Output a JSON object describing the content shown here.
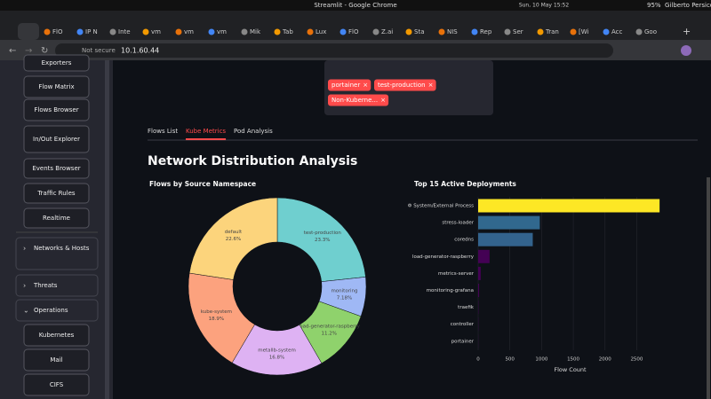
{
  "window": {
    "title": "Streamlit - Google Chrome",
    "clock": "Sun, 10 May 15:52",
    "battery": "95%",
    "user": "Gilberto Persico"
  },
  "browser": {
    "tabs": [
      "FlO",
      "IP N",
      "Inte",
      "vm",
      "vm",
      "vm",
      "Mik",
      "Tab",
      "Lux",
      "FlO",
      "Z.ai",
      "Sta",
      "NIS",
      "Rep",
      "Ser",
      "Tran",
      "[Wi",
      "Acc",
      "Goo"
    ],
    "security": "Not secure",
    "url": "10.1.60.44"
  },
  "sidebar": {
    "buttons": [
      "Exporters",
      "Flow Matrix",
      "Flows Browser",
      "In/Out Explorer",
      "Events Browser",
      "Traffic Rules",
      "Realtime"
    ],
    "expanders": [
      "Networks & Hosts",
      "Threats",
      "Operations"
    ],
    "sub_buttons": [
      "Kubernetes",
      "Mail",
      "CIFS"
    ]
  },
  "filter": {
    "tags": [
      "portainer",
      "test-production",
      "Non-Kuberne..."
    ]
  },
  "tabs": {
    "items": [
      "Flows List",
      "Kube Metrics",
      "Pod Analysis"
    ],
    "active": 1
  },
  "heading": "Network Distribution Analysis",
  "chart_data": [
    {
      "type": "pie",
      "title": "Flows by Source Namespace",
      "labels": [
        "test-production",
        "monitoring",
        "load-generator-raspberry",
        "metallb-system",
        "kube-system",
        "default"
      ],
      "values": [
        23.3,
        7.18,
        11.2,
        16.8,
        18.9,
        22.6
      ],
      "value_labels": [
        "23.3%",
        "7.18%",
        "11.2%",
        "16.8%",
        "18.9%",
        "22.6%"
      ],
      "colors": [
        "#6fcfcf",
        "#9fb8f5",
        "#8fd26c",
        "#deb2f3",
        "#fca27e",
        "#fcd47c"
      ]
    },
    {
      "type": "bar",
      "title": "Top 15 Active Deployments",
      "orientation": "horizontal",
      "categories": [
        "⚙ System/External Process",
        "stress-loader",
        "coredns",
        "load-generator-raspberry",
        "metrics-server",
        "monitoring-grafana",
        "traefik",
        "controller",
        "portainer"
      ],
      "values": [
        2860,
        972,
        861,
        180,
        40,
        15,
        5,
        3,
        2
      ],
      "colors": [
        "#fde725",
        "#31688e",
        "#33638d",
        "#440154",
        "#440154",
        "#440154",
        "#440154",
        "#440154",
        "#440154"
      ],
      "x_label": "Flow Count",
      "xlim": [
        0,
        2900
      ],
      "xticks": [
        0,
        500,
        1000,
        1500,
        2000,
        2500
      ]
    }
  ]
}
